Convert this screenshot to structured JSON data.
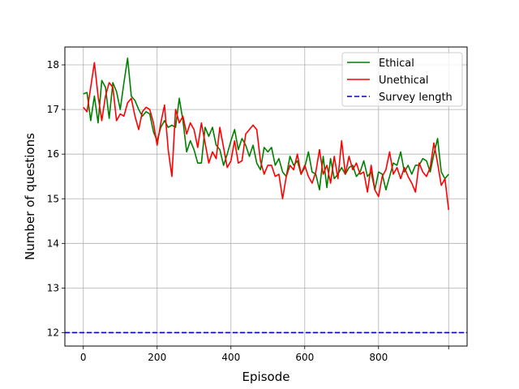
{
  "chart_data": {
    "type": "line",
    "xlabel": "Episode",
    "ylabel": "Number of questions",
    "xlim": [
      -50,
      1040
    ],
    "ylim": [
      11.7,
      18.4
    ],
    "xticks": [
      0,
      200,
      400,
      600,
      800
    ],
    "yticks": [
      12,
      13,
      14,
      15,
      16,
      17,
      18
    ],
    "grid": true,
    "legend_position": "top-right",
    "x": [
      0,
      10,
      20,
      30,
      40,
      50,
      60,
      70,
      80,
      90,
      100,
      110,
      120,
      130,
      140,
      150,
      160,
      170,
      180,
      190,
      200,
      210,
      220,
      230,
      240,
      250,
      260,
      270,
      280,
      290,
      300,
      310,
      320,
      330,
      340,
      350,
      360,
      370,
      380,
      390,
      400,
      410,
      420,
      430,
      440,
      450,
      460,
      470,
      480,
      490,
      500,
      510,
      520,
      530,
      540,
      550,
      560,
      570,
      580,
      590,
      600,
      610,
      620,
      630,
      640,
      650,
      660,
      670,
      680,
      690,
      700,
      710,
      720,
      730,
      740,
      750,
      760,
      770,
      780,
      790,
      800,
      810,
      820,
      830,
      840,
      850,
      860,
      870,
      880,
      890,
      900,
      910,
      920,
      930,
      940,
      950,
      960,
      970,
      980,
      990
    ],
    "series": [
      {
        "name": "Ethical",
        "color": "#008000",
        "style": "solid",
        "values": [
          17.35,
          17.38,
          16.75,
          17.3,
          16.7,
          17.65,
          17.5,
          16.8,
          17.6,
          17.4,
          17.0,
          17.6,
          18.15,
          17.3,
          17.2,
          17.0,
          16.85,
          16.95,
          16.9,
          16.5,
          16.3,
          16.6,
          16.75,
          16.6,
          16.65,
          16.6,
          17.25,
          16.75,
          16.05,
          16.3,
          16.1,
          15.8,
          15.8,
          16.6,
          16.4,
          16.6,
          16.2,
          16.1,
          15.75,
          16.0,
          16.3,
          16.55,
          16.1,
          16.35,
          16.2,
          15.95,
          16.2,
          15.8,
          15.65,
          16.15,
          16.05,
          16.15,
          15.75,
          15.9,
          15.6,
          15.5,
          15.95,
          15.75,
          15.85,
          15.55,
          15.7,
          16.05,
          15.6,
          15.55,
          15.2,
          15.95,
          15.25,
          15.9,
          15.45,
          15.55,
          15.7,
          15.55,
          15.7,
          15.75,
          15.5,
          15.6,
          15.85,
          15.5,
          15.6,
          15.2,
          15.6,
          15.55,
          15.2,
          15.5,
          15.8,
          15.75,
          16.05,
          15.6,
          15.75,
          15.55,
          15.75,
          15.75,
          15.9,
          15.85,
          15.6,
          16.0,
          16.35,
          15.6,
          15.45,
          15.55
        ]
      },
      {
        "name": "Unethical",
        "color": "#ff0000",
        "style": "solid",
        "values": [
          17.05,
          16.95,
          17.5,
          18.05,
          17.3,
          16.75,
          17.3,
          17.6,
          17.5,
          16.75,
          16.9,
          16.85,
          17.15,
          17.25,
          16.85,
          16.55,
          16.95,
          17.05,
          17.0,
          16.7,
          16.2,
          16.7,
          17.1,
          16.1,
          15.5,
          17.0,
          16.7,
          16.85,
          16.45,
          16.7,
          16.55,
          16.15,
          16.7,
          16.25,
          15.8,
          16.05,
          15.9,
          16.6,
          16.15,
          15.7,
          15.85,
          16.3,
          15.8,
          15.85,
          16.45,
          16.55,
          16.65,
          16.55,
          15.85,
          15.55,
          15.75,
          15.75,
          15.5,
          15.55,
          15.0,
          15.5,
          15.75,
          15.65,
          16.0,
          15.55,
          15.75,
          15.5,
          15.35,
          15.6,
          16.1,
          15.55,
          15.75,
          15.35,
          15.95,
          15.45,
          16.3,
          15.55,
          15.95,
          15.65,
          15.8,
          15.55,
          15.6,
          15.15,
          15.75,
          15.2,
          15.05,
          15.5,
          15.65,
          16.05,
          15.55,
          15.7,
          15.45,
          15.7,
          15.5,
          15.35,
          15.15,
          15.8,
          15.6,
          15.5,
          15.7,
          16.25,
          15.8,
          15.3,
          15.45,
          14.75
        ]
      },
      {
        "name": "Survey length",
        "color": "#0000cc",
        "style": "dashed",
        "constant": 12
      }
    ]
  }
}
